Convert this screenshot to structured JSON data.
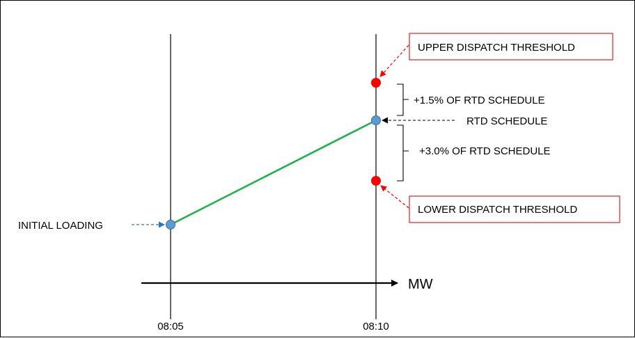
{
  "diagram": {
    "labels": {
      "upper_threshold": "UPPER DISPATCH THRESHOLD",
      "lower_threshold": "LOWER DISPATCH THRESHOLD",
      "plus_upper": "+1.5% OF RTD SCHEDULE",
      "plus_lower": "+3.0% OF RTD SCHEDULE",
      "rtd_schedule": "RTD SCHEDULE",
      "initial_loading": "INITIAL LOADING",
      "axis": "MW"
    },
    "times": [
      "08:05",
      "08:10"
    ],
    "colors": {
      "ramp_line": "#22b04a",
      "schedule_point": "#5b9bd5",
      "threshold_point": "#ff0000",
      "callout_border": "#e02020",
      "initial_arrow": "#2e75b6",
      "threshold_arrow": "#ff0000"
    }
  }
}
